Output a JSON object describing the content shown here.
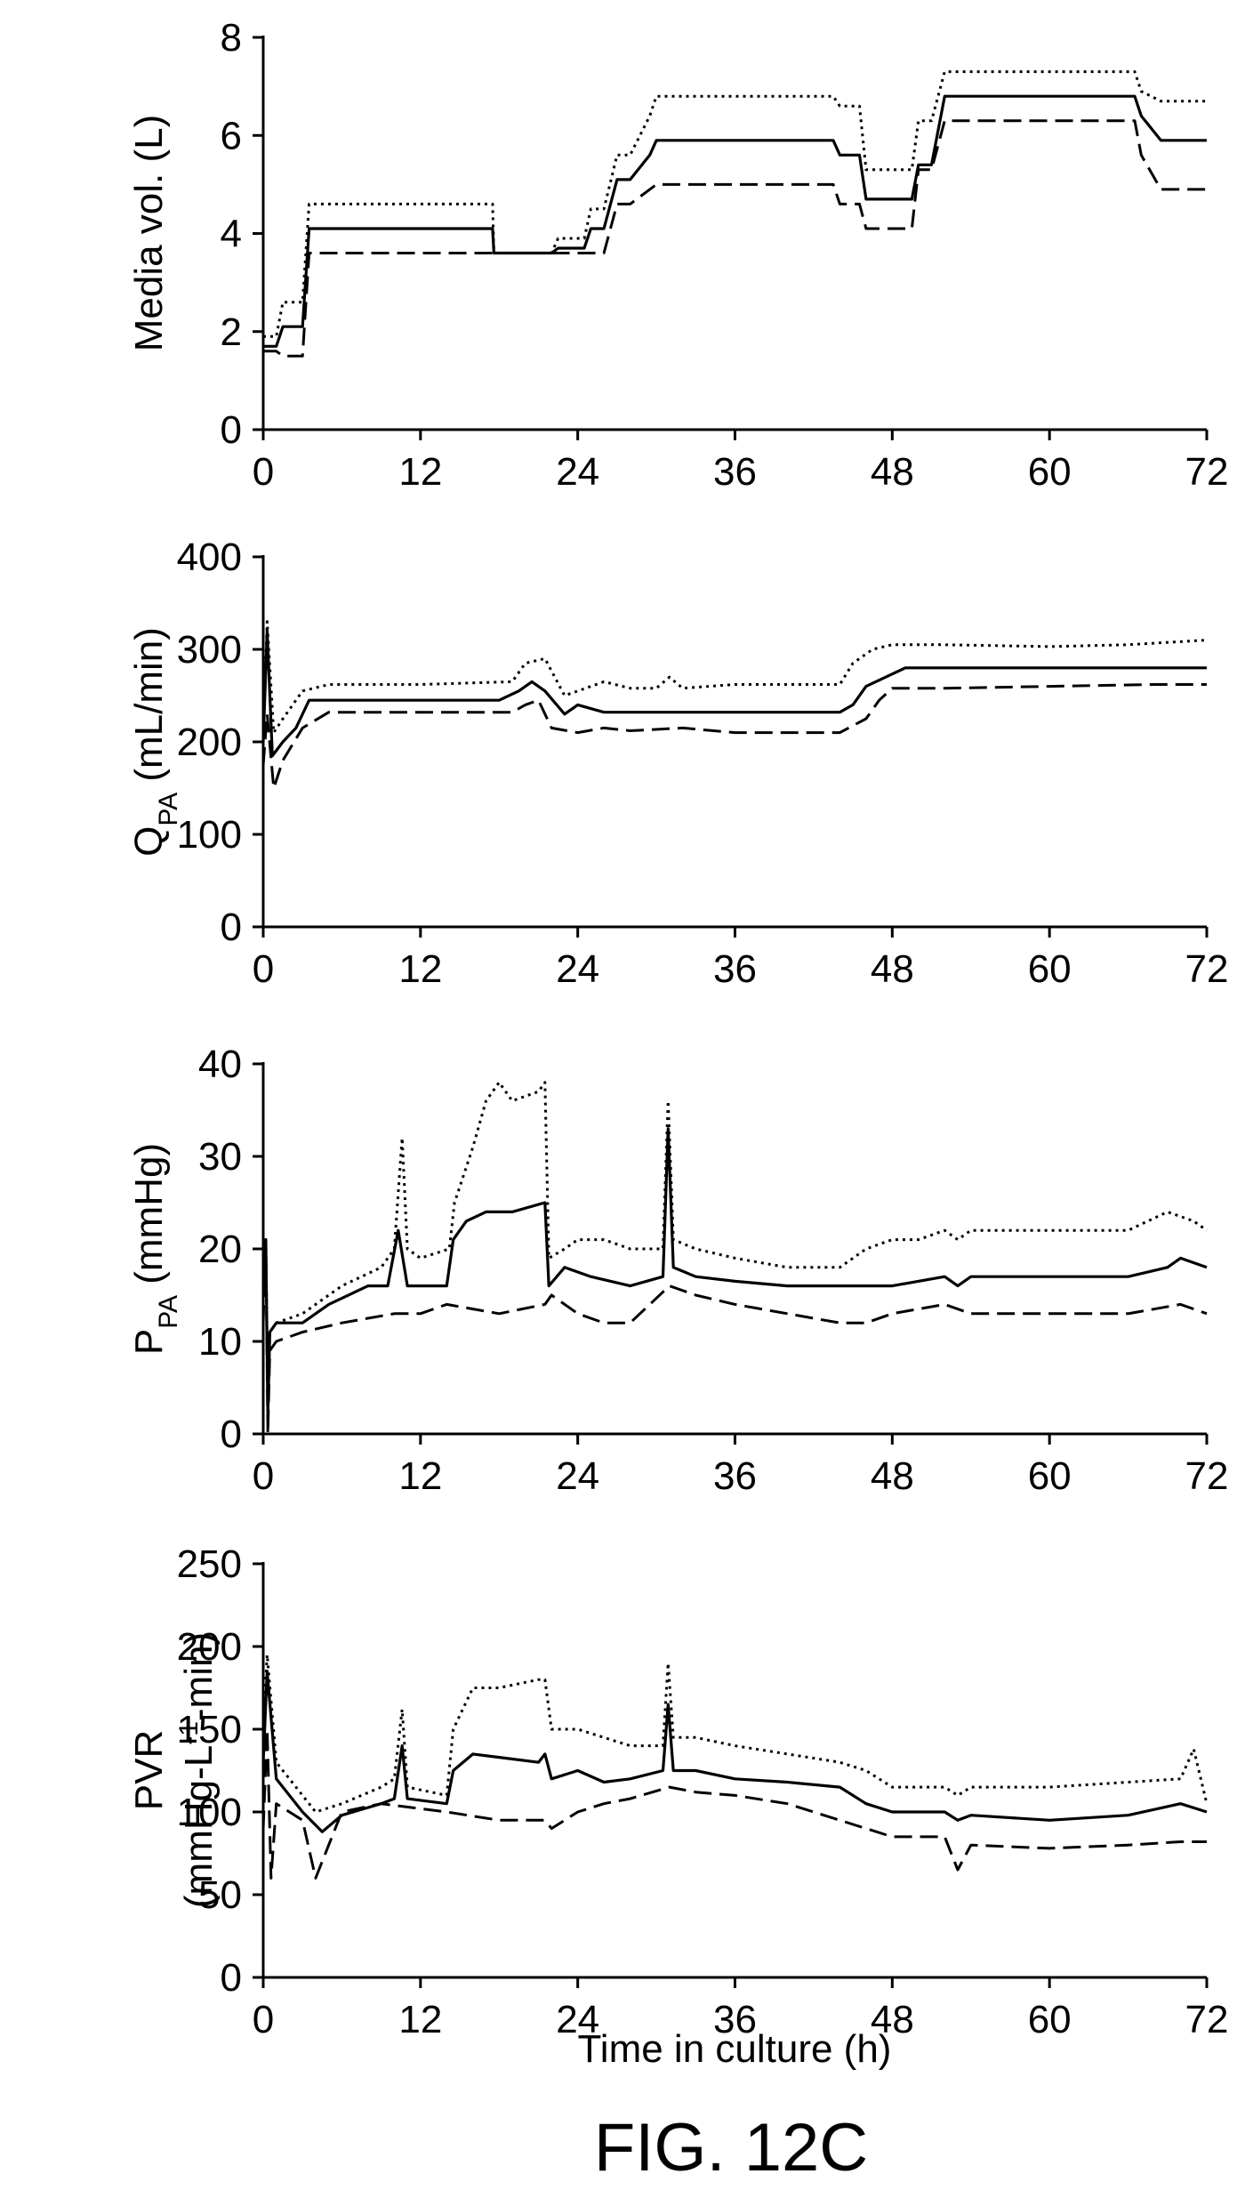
{
  "figure_caption": "FIG. 12C",
  "x_axis_title": "Time in culture (h)",
  "chart_data": [
    {
      "id": "media",
      "type": "line",
      "title": "",
      "xlabel": "",
      "ylabel": "Media vol. (L)",
      "xlim": [
        0,
        72
      ],
      "ylim": [
        0,
        8
      ],
      "xticks": [
        0,
        12,
        24,
        36,
        48,
        60,
        72
      ],
      "yticks": [
        0,
        2,
        4,
        6,
        8
      ],
      "grid": false,
      "series": [
        {
          "style": "dotted",
          "x": [
            0,
            1,
            1.5,
            3,
            3.5,
            17.5,
            17.6,
            22,
            22.5,
            24.5,
            25,
            26,
            27,
            28,
            29.5,
            30,
            43.5,
            44,
            45.5,
            46,
            49.5,
            50,
            51,
            52,
            66.5,
            67,
            68.5,
            72
          ],
          "y": [
            1.9,
            1.9,
            2.6,
            2.6,
            4.6,
            4.6,
            3.6,
            3.6,
            3.9,
            3.9,
            4.5,
            4.5,
            5.6,
            5.6,
            6.4,
            6.8,
            6.8,
            6.6,
            6.6,
            5.3,
            5.3,
            6.3,
            6.3,
            7.3,
            7.3,
            6.9,
            6.7,
            6.7
          ]
        },
        {
          "style": "solid",
          "x": [
            0,
            1,
            1.5,
            3,
            3.5,
            17.5,
            17.6,
            22,
            22.5,
            24.5,
            25,
            26,
            27,
            28,
            29.5,
            30,
            43.5,
            44,
            45.5,
            46,
            49.5,
            50,
            51,
            52,
            66.5,
            67,
            68.5,
            72
          ],
          "y": [
            1.7,
            1.7,
            2.1,
            2.1,
            4.1,
            4.1,
            3.6,
            3.6,
            3.7,
            3.7,
            4.1,
            4.1,
            5.1,
            5.1,
            5.6,
            5.9,
            5.9,
            5.6,
            5.6,
            4.7,
            4.7,
            5.4,
            5.4,
            6.8,
            6.8,
            6.4,
            5.9,
            5.9
          ]
        },
        {
          "style": "dashed",
          "x": [
            0,
            1,
            1.5,
            3,
            3.5,
            17.5,
            17.6,
            22,
            22.5,
            24.5,
            25,
            26,
            27,
            28,
            29.5,
            30,
            43.5,
            44,
            45.5,
            46,
            49.5,
            50,
            51,
            52,
            66.5,
            67,
            68.5,
            72
          ],
          "y": [
            1.6,
            1.6,
            1.5,
            1.5,
            3.6,
            3.6,
            3.6,
            3.6,
            3.6,
            3.6,
            3.6,
            3.6,
            4.6,
            4.6,
            4.9,
            5.0,
            5.0,
            4.6,
            4.6,
            4.1,
            4.1,
            5.3,
            5.3,
            6.3,
            6.3,
            5.6,
            4.9,
            4.9
          ]
        }
      ]
    },
    {
      "id": "qpa",
      "type": "line",
      "title": "",
      "xlabel": "",
      "ylabel": "QPA (mL/min)",
      "ylabel_main": "Q",
      "ylabel_sub": "PA",
      "ylabel_rest": " (mL/min)",
      "xlim": [
        0,
        72
      ],
      "ylim": [
        0,
        400
      ],
      "xticks": [
        0,
        12,
        24,
        36,
        48,
        60,
        72
      ],
      "yticks": [
        0,
        100,
        200,
        300,
        400
      ],
      "grid": false,
      "series": [
        {
          "style": "dotted",
          "x": [
            0,
            0.3,
            0.8,
            1.5,
            3,
            5,
            12,
            19,
            20,
            21.5,
            23,
            24,
            26,
            28,
            30,
            31,
            32,
            36,
            44,
            45,
            46.5,
            48,
            52,
            60,
            66,
            72
          ],
          "y": [
            205,
            330,
            210,
            225,
            255,
            262,
            262,
            265,
            285,
            290,
            250,
            255,
            265,
            258,
            258,
            270,
            258,
            262,
            262,
            285,
            300,
            305,
            305,
            303,
            305,
            310
          ]
        },
        {
          "style": "solid",
          "x": [
            0,
            0.3,
            0.7,
            1.5,
            2.5,
            3.5,
            12,
            18,
            19.5,
            20.5,
            21.5,
            23,
            24,
            26,
            27,
            36,
            44,
            45,
            46,
            47.5,
            49,
            60,
            72
          ],
          "y": [
            200,
            320,
            185,
            200,
            215,
            245,
            245,
            245,
            255,
            265,
            255,
            230,
            240,
            232,
            232,
            232,
            232,
            240,
            260,
            270,
            280,
            280,
            280
          ]
        },
        {
          "style": "dashed",
          "x": [
            0,
            0.3,
            0.8,
            1.5,
            3,
            5,
            12,
            19,
            20,
            21,
            22,
            24,
            26,
            28,
            32,
            36,
            44,
            46,
            47,
            48,
            52,
            60,
            68,
            72
          ],
          "y": [
            175,
            230,
            150,
            180,
            215,
            232,
            232,
            232,
            240,
            245,
            215,
            210,
            215,
            212,
            215,
            210,
            210,
            225,
            245,
            258,
            258,
            260,
            262,
            262
          ]
        }
      ]
    },
    {
      "id": "ppa",
      "type": "line",
      "title": "",
      "xlabel": "",
      "ylabel": "PPA (mmHg)",
      "ylabel_main": "P",
      "ylabel_sub": "PA",
      "ylabel_rest": " (mmHg)",
      "xlim": [
        0,
        72
      ],
      "ylim": [
        0,
        40
      ],
      "xticks": [
        0,
        12,
        24,
        36,
        48,
        60,
        72
      ],
      "yticks": [
        0,
        10,
        20,
        30,
        40
      ],
      "grid": false,
      "series": [
        {
          "style": "dotted",
          "x": [
            0,
            0.2,
            0.35,
            0.5,
            1,
            3,
            6,
            9,
            10,
            10.6,
            11,
            12,
            14.2,
            14.6,
            16,
            17,
            18,
            19,
            21,
            21.5,
            21.8,
            23,
            24,
            26,
            28,
            30.5,
            30.9,
            31.3,
            33,
            36,
            40,
            44,
            46,
            48,
            50,
            52,
            53,
            54,
            60,
            66,
            69,
            71,
            72
          ],
          "y": [
            19,
            21,
            3,
            11,
            12,
            13,
            16,
            18,
            20,
            32,
            20,
            19,
            20,
            25,
            31,
            36,
            38,
            36,
            37,
            38,
            19,
            20,
            21,
            21,
            20,
            20,
            36,
            21,
            20,
            19,
            18,
            18,
            20,
            21,
            21,
            22,
            21,
            22,
            22,
            22,
            24,
            23,
            22
          ]
        },
        {
          "style": "solid",
          "x": [
            0,
            0.2,
            0.35,
            0.5,
            1,
            3,
            5,
            8,
            9.5,
            10.3,
            11,
            14,
            14.5,
            15.5,
            17,
            19,
            21.5,
            21.8,
            23,
            25,
            28,
            30.5,
            30.9,
            31.3,
            33,
            36,
            40,
            44,
            48,
            52,
            53,
            54,
            60,
            66,
            69,
            70,
            72
          ],
          "y": [
            16,
            21,
            2,
            11,
            12,
            12,
            14,
            16,
            16,
            22,
            16,
            16,
            21,
            23,
            24,
            24,
            25,
            16,
            18,
            17,
            16,
            17,
            33,
            18,
            17,
            16.5,
            16,
            16,
            16,
            17,
            16,
            17,
            17,
            17,
            18,
            19,
            18
          ]
        },
        {
          "style": "dashed",
          "x": [
            0,
            0.2,
            0.35,
            0.5,
            1,
            3,
            6,
            10,
            12,
            14,
            18,
            21.5,
            22,
            24,
            26,
            28,
            31,
            33,
            36,
            40,
            44,
            46,
            48,
            52,
            54,
            60,
            66,
            70,
            72
          ],
          "y": [
            12,
            21,
            0,
            9,
            10,
            11,
            12,
            13,
            13,
            14,
            13,
            14,
            15,
            13,
            12,
            12,
            16,
            15,
            14,
            13,
            12,
            12,
            13,
            14,
            13,
            13,
            13,
            14,
            13
          ]
        }
      ]
    },
    {
      "id": "pvr",
      "type": "line",
      "title": "",
      "xlabel": "Time in culture (h)",
      "ylabel": "PVR (mmHg-L-1-min)",
      "ylabel_line1": "PVR",
      "ylabel_line2_main": "(mmHg-L",
      "ylabel_line2_sup": "-1",
      "ylabel_line2_rest": "-min)",
      "xlim": [
        0,
        72
      ],
      "ylim": [
        0,
        250
      ],
      "xticks": [
        0,
        12,
        24,
        36,
        48,
        60,
        72
      ],
      "yticks": [
        0,
        50,
        100,
        150,
        200,
        250
      ],
      "grid": false,
      "series": [
        {
          "style": "dotted",
          "x": [
            0,
            0.3,
            1,
            3,
            4,
            6,
            9,
            10,
            10.6,
            11,
            14,
            14.5,
            16,
            18,
            21,
            21.5,
            22,
            24,
            26,
            28,
            30.5,
            30.9,
            31.3,
            33,
            36,
            40,
            44,
            46,
            48,
            52,
            53,
            54,
            60,
            66,
            70,
            71,
            72
          ],
          "y": [
            150,
            195,
            130,
            110,
            100,
            105,
            115,
            120,
            162,
            115,
            110,
            150,
            175,
            175,
            180,
            180,
            150,
            150,
            145,
            140,
            140,
            190,
            145,
            145,
            140,
            135,
            130,
            125,
            115,
            115,
            110,
            115,
            115,
            118,
            120,
            138,
            105
          ]
        },
        {
          "style": "solid",
          "x": [
            0,
            0.3,
            1,
            3,
            4.5,
            6,
            9,
            10,
            10.6,
            11,
            14,
            14.5,
            16,
            18,
            21,
            21.5,
            22,
            24,
            26,
            28,
            30.5,
            30.9,
            31.3,
            33,
            36,
            40,
            44,
            46,
            48,
            52,
            53,
            54,
            60,
            66,
            70,
            72
          ],
          "y": [
            130,
            185,
            120,
            100,
            88,
            98,
            105,
            108,
            140,
            108,
            105,
            125,
            135,
            133,
            130,
            135,
            120,
            125,
            118,
            120,
            125,
            165,
            125,
            125,
            120,
            118,
            115,
            105,
            100,
            100,
            95,
            98,
            95,
            98,
            105,
            100
          ]
        },
        {
          "style": "dashed",
          "x": [
            0,
            0.3,
            0.6,
            1,
            3,
            4,
            6,
            9,
            12,
            14,
            18,
            21.5,
            22,
            24,
            26,
            28,
            31,
            33,
            36,
            40,
            44,
            46,
            48,
            52,
            53,
            54,
            60,
            66,
            70,
            72
          ],
          "y": [
            90,
            150,
            60,
            105,
            95,
            60,
            100,
            105,
            102,
            100,
            95,
            95,
            90,
            100,
            105,
            108,
            115,
            112,
            110,
            105,
            95,
            90,
            85,
            85,
            65,
            80,
            78,
            80,
            82,
            82
          ]
        }
      ]
    }
  ]
}
